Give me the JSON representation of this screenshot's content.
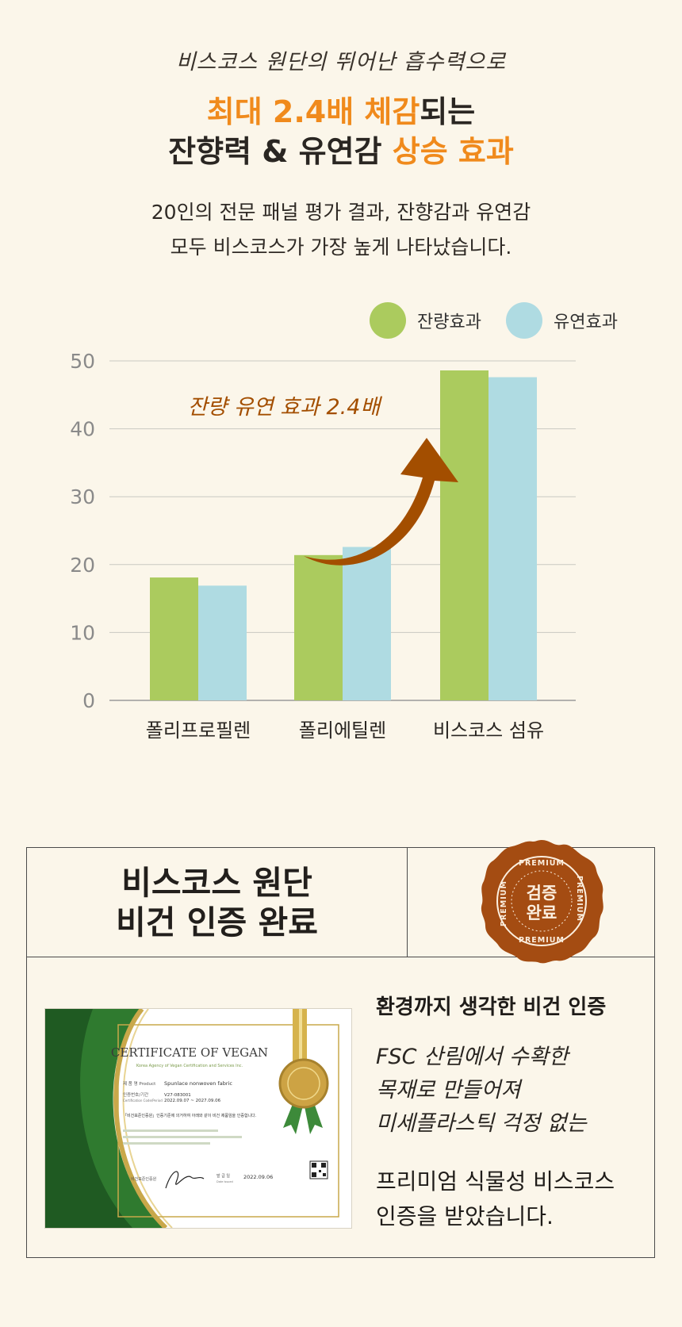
{
  "header": {
    "tagline": "비스코스 원단의 뛰어난 흡수력으로",
    "headline_1_orange": "최대 2.4배 체감",
    "headline_1_dark": "되는",
    "headline_2_dark": "잔향력 & 유연감 ",
    "headline_2_orange": "상승 효과",
    "desc_1": "20인의 전문 패널 평가 결과, 잔향감과 유연감",
    "desc_2": "모두 비스코스가 가장 높게 나타났습니다."
  },
  "colors": {
    "green": "#abcb5e",
    "blue": "#afdbe2",
    "orange": "#f08a1c",
    "arrow": "#a34e00"
  },
  "chart_data": {
    "type": "bar",
    "categories": [
      "폴리프로필렌",
      "폴리에틸렌",
      "비스코스 섬유"
    ],
    "series": [
      {
        "name": "잔량효과",
        "values": [
          18.1,
          21.4,
          48.6
        ]
      },
      {
        "name": "유연효과",
        "values": [
          16.9,
          22.6,
          47.6
        ]
      }
    ],
    "yticks": [
      "0",
      "10",
      "20",
      "30",
      "40",
      "50"
    ],
    "ylim": [
      0,
      50
    ],
    "grid": true,
    "legend": "top-right",
    "annotation": "잔량 유연 효과 2.4배"
  },
  "certification": {
    "title_line_1": "비스코스 원단",
    "title_line_2": "비건 인증 완료",
    "badge_ring_text": "PREMIUM",
    "badge_center_1": "검증",
    "badge_center_2": "완료",
    "subtitle": "환경까지 생각한 비건 인증",
    "lines": [
      "FSC 산림에서 수확한",
      "목재로 만들어져",
      "미세플라스틱 걱정 없는"
    ],
    "final_1": "프리미엄 식물성 비스코스",
    "final_2": "인증을 받았습니다."
  },
  "certificate": {
    "heading": "CERTIFICATE OF VEGAN",
    "org": "Korea Agency of Vegan Certification and Services Inc.",
    "product_label": "제 품 명 Product",
    "product_value": "Spunlace nonwoven fabric",
    "cert_label": "인증번호/기간",
    "cert_period_label": "Certification Code/Period",
    "cert_code": "V27-083001",
    "cert_period": "2022.09.07 ~ 2027.09.06",
    "statement": "「비건표준인증원」인증기준에 의거하여 아래와 같이 비건 제품임을 인증합니다.",
    "date_label": "발 급 일",
    "date_label_en": "Date Issued",
    "date_value": "2022.09.06",
    "authority_label": "비건표준인증원"
  }
}
